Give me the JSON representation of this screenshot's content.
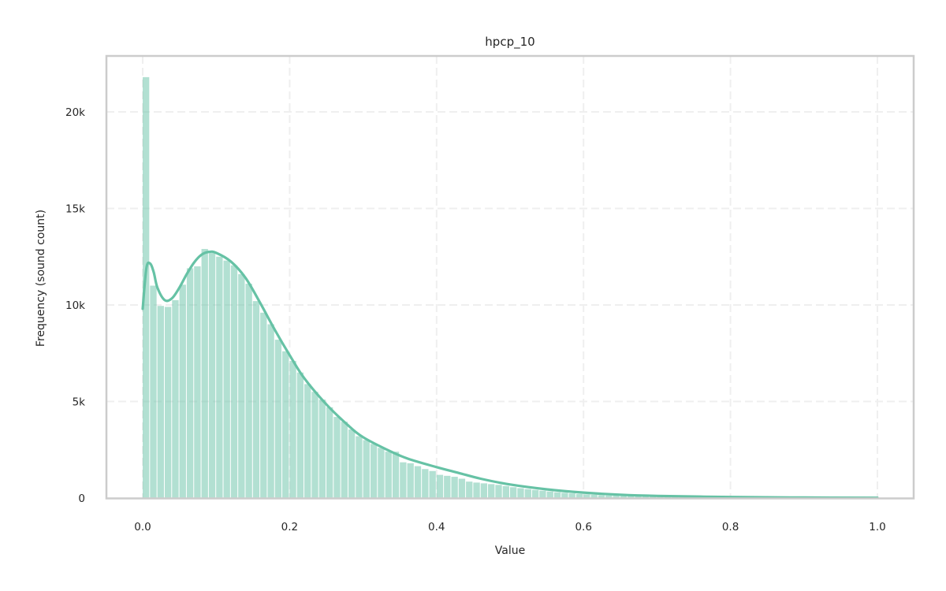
{
  "chart_data": {
    "type": "bar",
    "subtype": "histogram_with_kde",
    "title": "hpcp_10",
    "xlabel": "Value",
    "ylabel": "Frequency (sound count)",
    "xlim": [
      -0.05,
      1.05
    ],
    "ylim": [
      0,
      22900
    ],
    "xticks": [
      0.0,
      0.2,
      0.4,
      0.6,
      0.8,
      1.0
    ],
    "xtick_labels": [
      "0.0",
      "0.2",
      "0.4",
      "0.6",
      "0.8",
      "1.0"
    ],
    "yticks": [
      0,
      5000,
      10000,
      15000,
      20000
    ],
    "ytick_labels": [
      "0",
      "5k",
      "10k",
      "15k",
      "20k"
    ],
    "grid": true,
    "legend": null,
    "bin_width": 0.01,
    "bin_start": 0.0,
    "bin_end": 1.0,
    "bar_color": "#66c2a5",
    "bar_alpha": 0.5,
    "kde_color": "#66c2a5",
    "values": [
      21800,
      11000,
      9950,
      9900,
      10250,
      11050,
      11900,
      12000,
      12900,
      12700,
      12500,
      12300,
      12050,
      11600,
      11100,
      10200,
      9600,
      9000,
      8200,
      7600,
      7100,
      6500,
      5900,
      5500,
      5100,
      4700,
      4200,
      3950,
      3550,
      3200,
      3000,
      2800,
      2600,
      2400,
      2400,
      1850,
      1800,
      1650,
      1500,
      1400,
      1200,
      1150,
      1100,
      1000,
      850,
      800,
      760,
      720,
      680,
      620,
      560,
      510,
      460,
      420,
      380,
      340,
      300,
      270,
      240,
      210,
      190,
      170,
      150,
      135,
      120,
      108,
      97,
      88,
      80,
      72,
      65,
      60,
      55,
      50,
      46,
      42,
      39,
      36,
      33,
      31,
      29,
      27,
      25,
      23,
      22,
      21,
      20,
      19,
      18,
      17,
      16,
      15,
      15,
      14,
      14,
      13,
      13,
      12,
      12,
      40
    ],
    "kde": {
      "x": [
        0.0,
        0.005,
        0.01,
        0.015,
        0.02,
        0.03,
        0.04,
        0.05,
        0.06,
        0.07,
        0.08,
        0.09,
        0.1,
        0.12,
        0.14,
        0.16,
        0.18,
        0.2,
        0.22,
        0.25,
        0.28,
        0.3,
        0.33,
        0.36,
        0.4,
        0.43,
        0.46,
        0.5,
        0.55,
        0.6,
        0.65,
        0.7,
        0.8,
        0.9,
        1.0
      ],
      "y": [
        9800,
        11900,
        12150,
        11700,
        10900,
        10250,
        10350,
        10900,
        11600,
        12200,
        12600,
        12750,
        12700,
        12250,
        11400,
        10100,
        8700,
        7400,
        6200,
        4850,
        3750,
        3150,
        2550,
        2050,
        1600,
        1300,
        1000,
        700,
        450,
        280,
        170,
        110,
        50,
        25,
        10
      ]
    }
  }
}
